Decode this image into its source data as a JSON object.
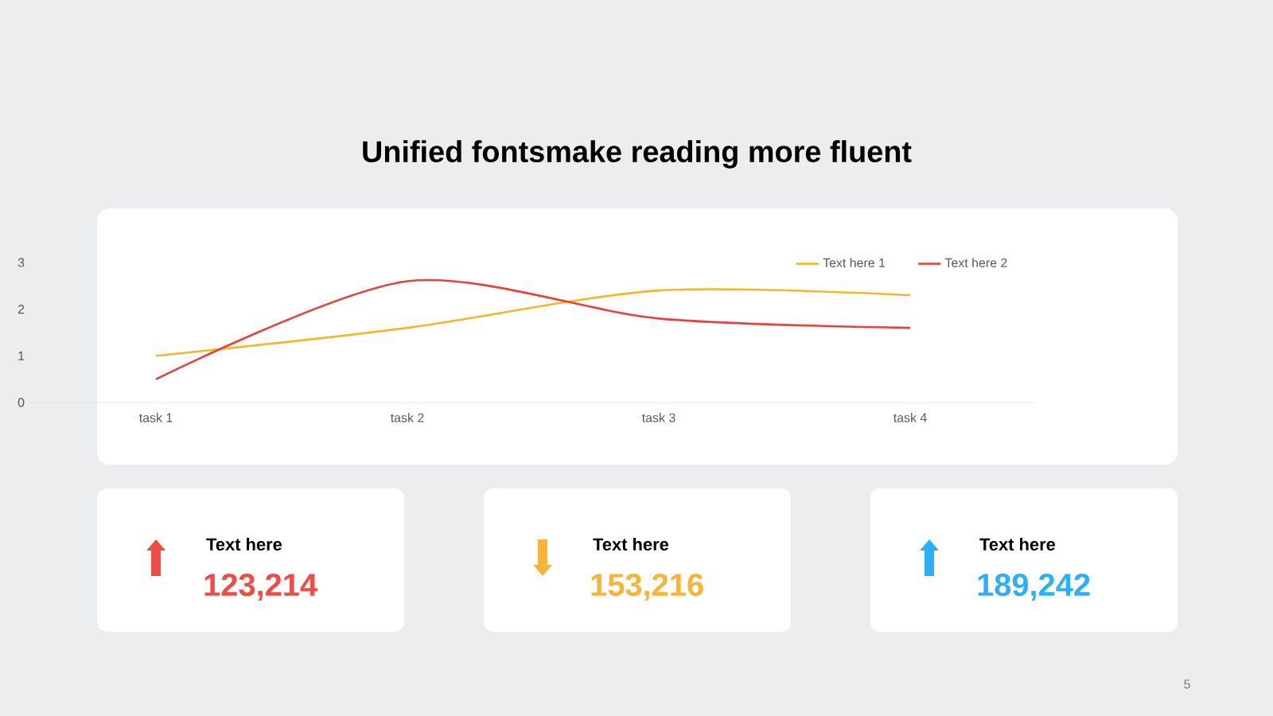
{
  "chart_data": [
    {
      "type": "line",
      "title": "Unified fontsmake reading more fluent",
      "categories": [
        "task 1",
        "task 2",
        "task 3",
        "task 4"
      ],
      "series": [
        {
          "name": "Text here 1",
          "color": "#f5b62a",
          "values": [
            1.0,
            1.6,
            2.4,
            2.3
          ]
        },
        {
          "name": "Text here 2",
          "color": "#e8403b",
          "values": [
            0.5,
            2.6,
            1.8,
            1.6
          ]
        }
      ],
      "ylim": [
        0,
        3
      ],
      "yticks": [
        0,
        1,
        2,
        3
      ],
      "legend": "top right",
      "grid": false,
      "marker": "none",
      "line_style": "solid",
      "annotations": [
        "5"
      ]
    },
    {
      "type": "other",
      "annotations": [
        "Text here",
        "123,214",
        "Text here",
        "153,216",
        "Text here",
        "189,242"
      ],
      "colors": [
        "#f04b45",
        "#f8b437",
        "#2bb0f7"
      ]
    }
  ]
}
